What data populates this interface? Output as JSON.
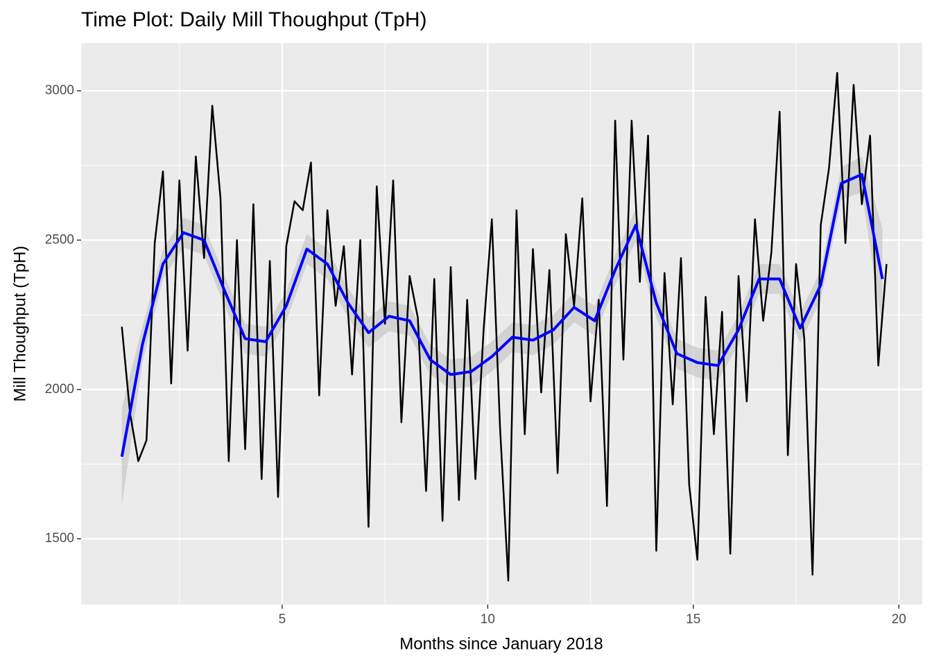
{
  "chart_data": {
    "type": "line",
    "title": "Time Plot: Daily Mill Thoughput (TpH)",
    "x_label": "Months since January 2018",
    "y_label": "Mill Thoughput (TpH)",
    "xlim": [
      0.11,
      20.57
    ],
    "ylim": [
      1280,
      3160
    ],
    "xticks": [
      5,
      10,
      15,
      20
    ],
    "yticks": [
      1500,
      2000,
      2500,
      3000
    ],
    "x_minor_ticks": [
      2.5,
      7.5,
      12.5,
      17.5
    ],
    "y_minor_ticks": [
      1750,
      2250,
      2750
    ],
    "grid": true,
    "color": "#000000",
    "x": [
      1.1,
      1.3,
      1.5,
      1.7,
      1.9,
      2.1,
      2.3,
      2.5,
      2.7,
      2.9,
      3.1,
      3.3,
      3.5,
      3.7,
      3.9,
      4.1,
      4.3,
      4.5,
      4.7,
      4.9,
      5.1,
      5.3,
      5.5,
      5.7,
      5.9,
      6.1,
      6.3,
      6.5,
      6.7,
      6.9,
      7.1,
      7.3,
      7.5,
      7.7,
      7.9,
      8.1,
      8.3,
      8.5,
      8.7,
      8.9,
      9.1,
      9.3,
      9.5,
      9.7,
      9.9,
      10.1,
      10.3,
      10.5,
      10.7,
      10.9,
      11.1,
      11.3,
      11.5,
      11.7,
      11.9,
      12.1,
      12.3,
      12.5,
      12.7,
      12.9,
      13.1,
      13.3,
      13.5,
      13.7,
      13.9,
      14.1,
      14.3,
      14.5,
      14.7,
      14.9,
      15.1,
      15.3,
      15.5,
      15.7,
      15.9,
      16.1,
      16.3,
      16.5,
      16.7,
      16.9,
      17.1,
      17.3,
      17.5,
      17.7,
      17.9,
      18.1,
      18.3,
      18.5,
      18.7,
      18.9,
      19.1,
      19.3,
      19.5,
      19.7
    ],
    "values": [
      2210,
      1920,
      1760,
      1830,
      2490,
      2730,
      2020,
      2700,
      2130,
      2780,
      2440,
      2950,
      2640,
      1760,
      2500,
      1800,
      2620,
      1700,
      2430,
      1640,
      2480,
      2630,
      2600,
      2760,
      1980,
      2600,
      2280,
      2480,
      2050,
      2500,
      1540,
      2680,
      2220,
      2700,
      1890,
      2380,
      2240,
      1660,
      2370,
      1560,
      2410,
      1630,
      2300,
      1700,
      2200,
      2570,
      1870,
      1360,
      2600,
      1850,
      2470,
      1990,
      2400,
      1720,
      2520,
      2280,
      2640,
      1960,
      2300,
      1610,
      2900,
      2100,
      2900,
      2360,
      2850,
      1460,
      2390,
      1950,
      2440,
      1680,
      1430,
      2310,
      1850,
      2260,
      1450,
      2380,
      1960,
      2570,
      2230,
      2460,
      2930,
      1780,
      2420,
      2170,
      1380,
      2550,
      2740,
      3060,
      2490,
      3020,
      2620,
      2850,
      2080,
      2420
    ],
    "smooth": {
      "color": "#0000ff",
      "band_color": "#c8c8c8",
      "x": [
        1.1,
        1.6,
        2.1,
        2.6,
        3.1,
        3.6,
        4.1,
        4.6,
        5.1,
        5.6,
        6.1,
        6.6,
        7.1,
        7.6,
        8.1,
        8.6,
        9.1,
        9.6,
        10.1,
        10.6,
        11.1,
        11.6,
        12.1,
        12.6,
        13.1,
        13.6,
        14.1,
        14.6,
        15.1,
        15.6,
        16.1,
        16.6,
        17.1,
        17.6,
        18.1,
        18.6,
        19.1,
        19.6
      ],
      "values": [
        1775,
        2150,
        2420,
        2525,
        2500,
        2330,
        2170,
        2160,
        2280,
        2470,
        2420,
        2290,
        2190,
        2245,
        2230,
        2100,
        2050,
        2060,
        2110,
        2175,
        2165,
        2200,
        2275,
        2230,
        2400,
        2550,
        2290,
        2120,
        2090,
        2080,
        2200,
        2370,
        2370,
        2205,
        2350,
        2690,
        2720,
        2370
      ],
      "lower": [
        1610,
        2090,
        2370,
        2475,
        2450,
        2280,
        2120,
        2110,
        2230,
        2420,
        2370,
        2240,
        2140,
        2195,
        2180,
        2050,
        2000,
        2010,
        2060,
        2125,
        2115,
        2150,
        2225,
        2180,
        2350,
        2495,
        2240,
        2070,
        2040,
        2030,
        2150,
        2320,
        2320,
        2155,
        2300,
        2635,
        2660,
        2200
      ],
      "upper": [
        1940,
        2210,
        2470,
        2575,
        2550,
        2380,
        2220,
        2210,
        2330,
        2520,
        2470,
        2340,
        2240,
        2295,
        2280,
        2150,
        2100,
        2110,
        2160,
        2225,
        2215,
        2250,
        2325,
        2280,
        2450,
        2605,
        2340,
        2170,
        2140,
        2130,
        2250,
        2420,
        2420,
        2255,
        2400,
        2745,
        2780,
        2540
      ]
    }
  }
}
